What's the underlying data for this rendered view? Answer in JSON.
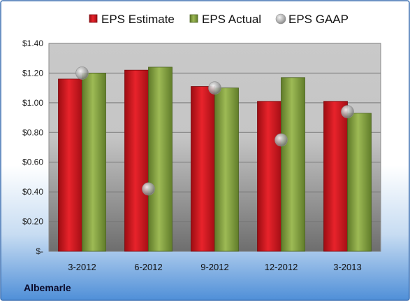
{
  "company": "Albemarle",
  "colors": {
    "estimate": "#c9141b",
    "actual": "#7f9a3c",
    "gaap": "#a9a9a9",
    "frame": "#3c6fb0"
  },
  "chart_data": {
    "type": "bar",
    "categories": [
      "3-2012",
      "6-2012",
      "9-2012",
      "12-2012",
      "3-2013"
    ],
    "series": [
      {
        "name": "EPS Estimate",
        "kind": "bar",
        "values": [
          1.16,
          1.22,
          1.11,
          1.01,
          1.01
        ]
      },
      {
        "name": "EPS Actual",
        "kind": "bar",
        "values": [
          1.2,
          1.24,
          1.1,
          1.17,
          0.93
        ]
      },
      {
        "name": "EPS GAAP",
        "kind": "marker",
        "values": [
          1.2,
          0.42,
          1.1,
          0.75,
          0.94
        ]
      }
    ],
    "yticks": [
      0,
      0.2,
      0.4,
      0.6,
      0.8,
      1.0,
      1.2,
      1.4
    ],
    "ytick_labels": [
      "$-",
      "$0.20",
      "$0.40",
      "$0.60",
      "$0.80",
      "$1.00",
      "$1.20",
      "$1.40"
    ],
    "ylim": [
      0,
      1.4
    ],
    "grid": true,
    "legend_position": "top"
  }
}
